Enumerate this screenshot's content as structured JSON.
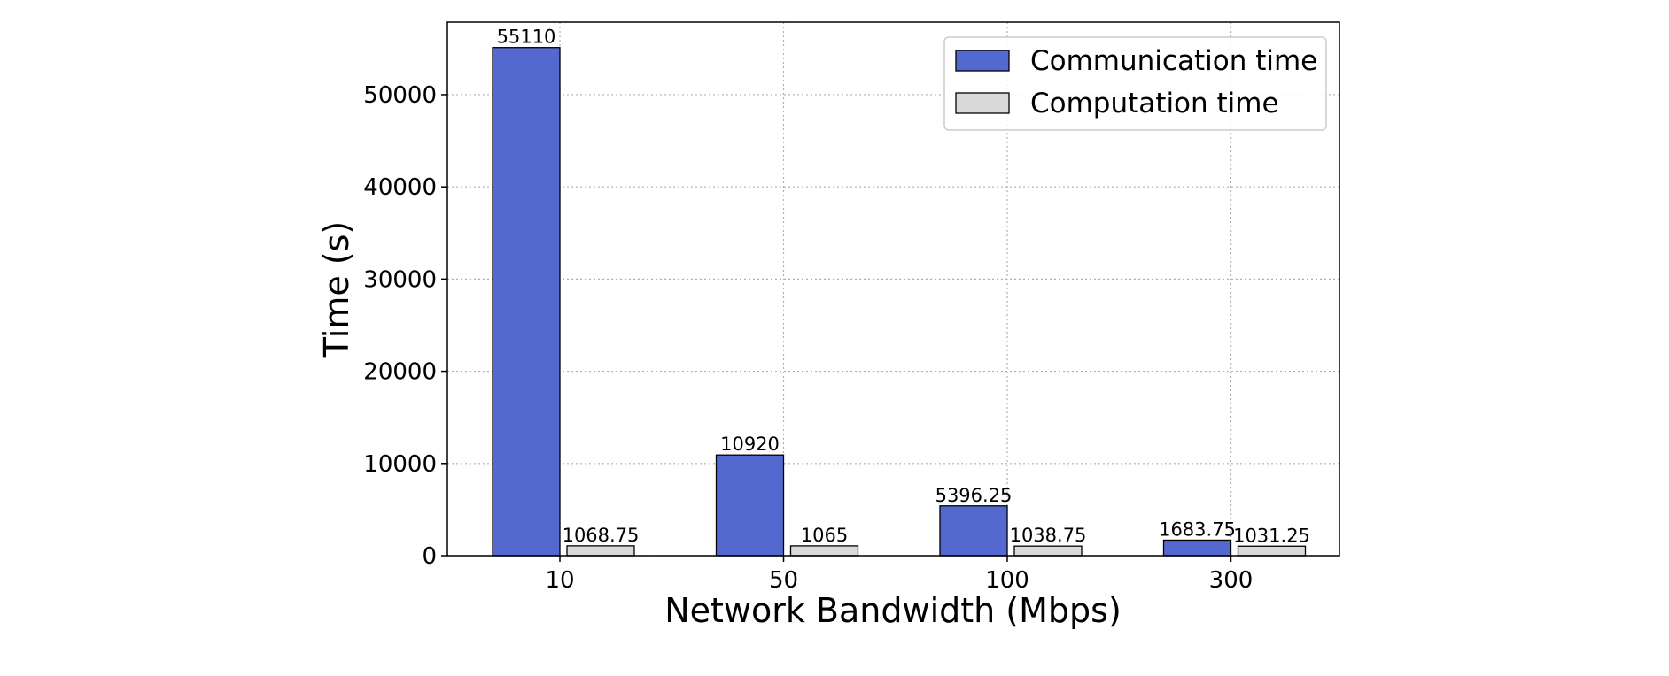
{
  "chart_data": {
    "type": "bar",
    "categories": [
      "10",
      "50",
      "100",
      "300"
    ],
    "series": [
      {
        "name": "Communication time",
        "values": [
          55110,
          10920,
          5396.25,
          1683.75
        ],
        "labels": [
          "55110",
          "10920",
          "5396.25",
          "1683.75"
        ],
        "color": "#5469d0"
      },
      {
        "name": "Computation time",
        "values": [
          1068.75,
          1065,
          1038.75,
          1031.25
        ],
        "labels": [
          "1068.75",
          "1065",
          "1038.75",
          "1031.25"
        ],
        "color": "#d9d9d9"
      }
    ],
    "xlabel": "Network Bandwidth (Mbps)",
    "ylabel": "Time (s)",
    "ylim": [
      0,
      57865
    ],
    "yticks": [
      0,
      10000,
      20000,
      30000,
      40000,
      50000
    ],
    "ytick_labels": [
      "0",
      "10000",
      "20000",
      "30000",
      "40000",
      "50000"
    ],
    "grid": true,
    "legend": "upper right"
  }
}
